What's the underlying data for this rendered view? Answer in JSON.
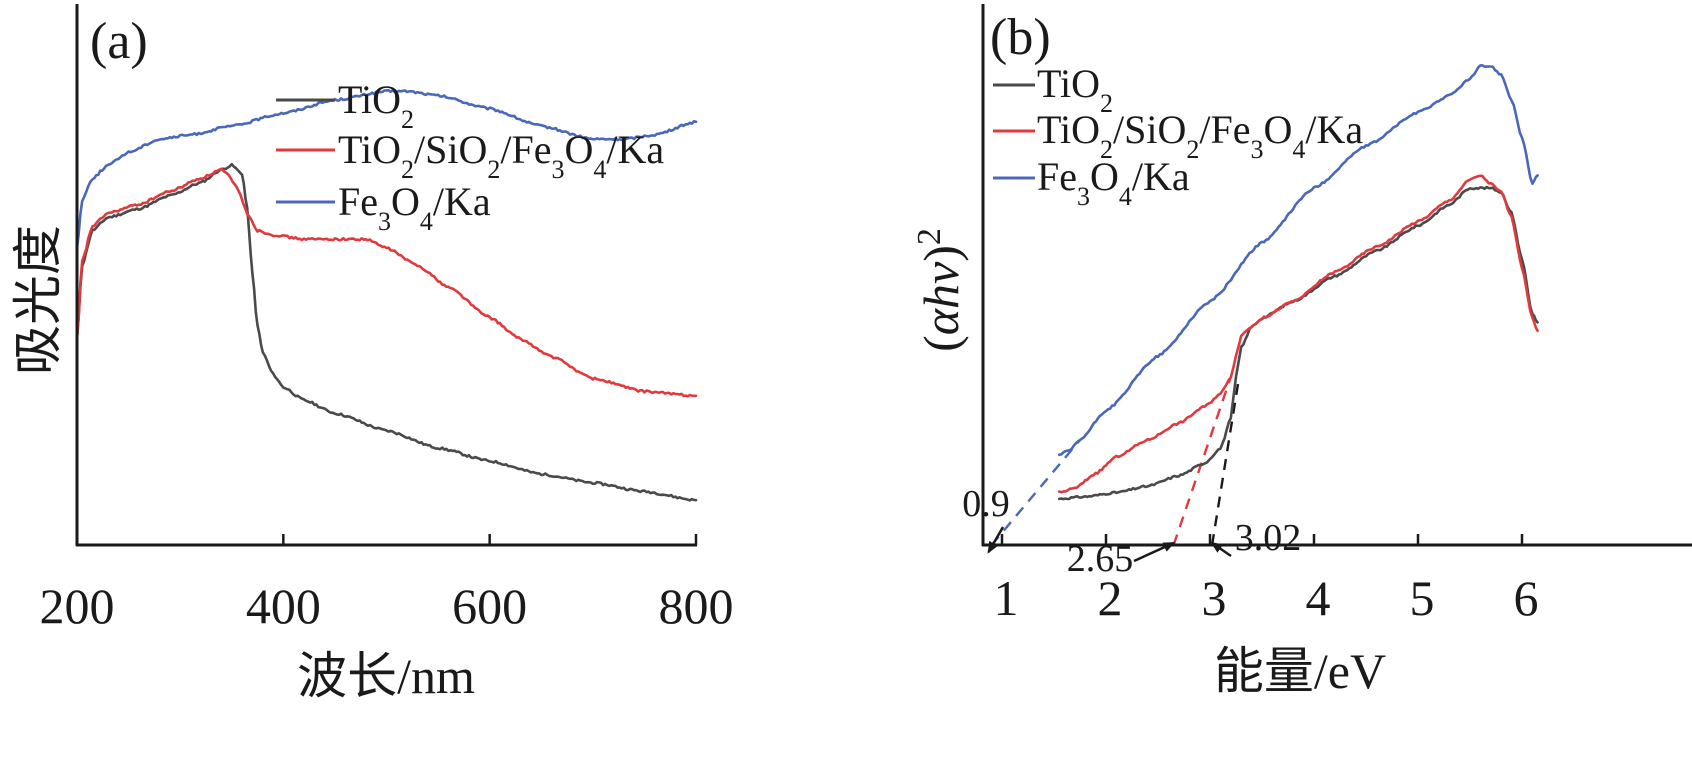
{
  "chart_data": [
    {
      "type": "line",
      "panel_label": "(a)",
      "title": "",
      "xlabel": "波长/nm",
      "ylabel": "吸光度",
      "xlim": [
        200,
        800
      ],
      "ylim": [
        0,
        100
      ],
      "x_ticks": [
        200,
        400,
        600,
        800
      ],
      "x_tick_labels": [
        "200",
        "400",
        "600",
        "800"
      ],
      "y_ticks": [],
      "grid": false,
      "legend": {
        "position": "top-right",
        "entries": [
          "TiO2",
          "TiO2/SiO2/Fe3O4/Ka",
          "Fe3O4/Ka"
        ]
      },
      "series": [
        {
          "name": "TiO2",
          "legend_label": {
            "parts": [
              [
                "Ti",
                ""
              ],
              [
                "O",
                ""
              ],
              [
                "2",
                "sub"
              ]
            ]
          },
          "color": "#4a4a4a",
          "x": [
            200,
            205,
            215,
            230,
            260,
            290,
            320,
            340,
            350,
            360,
            365,
            370,
            375,
            380,
            390,
            400,
            420,
            450,
            500,
            550,
            600,
            650,
            700,
            750,
            800
          ],
          "y": [
            45,
            62,
            70,
            73,
            75,
            78,
            81,
            84,
            85,
            83,
            75,
            60,
            48,
            42,
            37,
            34,
            31,
            28,
            24,
            20,
            17,
            14,
            12,
            10,
            8
          ]
        },
        {
          "name": "TiO2/SiO2/Fe3O4/Ka",
          "legend_label": {
            "parts": [
              [
                "Ti",
                ""
              ],
              [
                "O",
                ""
              ],
              [
                "2",
                "sub"
              ],
              [
                "/Si",
                ""
              ],
              [
                "O",
                ""
              ],
              [
                "2",
                "sub"
              ],
              [
                "/Fe",
                ""
              ],
              [
                "3",
                "sub"
              ],
              [
                "O",
                ""
              ],
              [
                "4",
                "sub"
              ],
              [
                "/Ka",
                ""
              ]
            ]
          },
          "color": "#e03a3e",
          "x": [
            200,
            205,
            215,
            230,
            260,
            290,
            320,
            340,
            345,
            355,
            365,
            375,
            390,
            420,
            450,
            480,
            500,
            530,
            560,
            600,
            630,
            660,
            700,
            750,
            800
          ],
          "y": [
            45,
            63,
            71,
            74,
            76,
            79,
            82,
            84,
            83,
            80,
            74,
            70,
            69,
            68,
            68,
            68,
            66,
            62,
            57,
            50,
            45,
            41,
            36,
            33,
            32
          ]
        },
        {
          "name": "Fe3O4/Ka",
          "legend_label": {
            "parts": [
              [
                "Fe",
                ""
              ],
              [
                "3",
                "sub"
              ],
              [
                "O",
                ""
              ],
              [
                "4",
                "sub"
              ],
              [
                "/Ka",
                ""
              ]
            ]
          },
          "color": "#4a68b8",
          "x": [
            200,
            205,
            215,
            230,
            250,
            280,
            310,
            350,
            400,
            450,
            500,
            520,
            550,
            600,
            650,
            700,
            730,
            760,
            800
          ],
          "y": [
            66,
            77,
            82,
            85,
            88,
            91,
            92,
            94,
            97,
            100,
            102,
            102,
            101,
            98,
            94,
            91,
            91,
            92,
            95
          ]
        }
      ]
    },
    {
      "type": "line",
      "panel_label": "(b)",
      "title": "",
      "xlabel": "能量/eV",
      "ylabel": "(αhν)²",
      "ylabel_parts": {
        "open": "(",
        "greek": "αhν",
        "close": ")",
        "sup": "2"
      },
      "xlim": [
        0.8,
        6.2
      ],
      "ylim": [
        0,
        100
      ],
      "x_ticks": [
        1,
        2,
        3,
        4,
        5,
        6
      ],
      "x_tick_labels": [
        "1",
        "2",
        "3",
        "4",
        "5",
        "6"
      ],
      "y_ticks": [],
      "grid": false,
      "legend": {
        "position": "top-left",
        "entries": [
          "TiO2",
          "TiO2/SiO2/Fe3O4/Ka",
          "Fe3O4/Ka"
        ]
      },
      "series": [
        {
          "name": "TiO2",
          "color": "#4a4a4a",
          "x": [
            1.55,
            1.8,
            2.1,
            2.4,
            2.7,
            2.95,
            3.1,
            3.2,
            3.25,
            3.3,
            3.4,
            3.5,
            3.8,
            4.2,
            4.6,
            5.0,
            5.3,
            5.5,
            5.6,
            5.7,
            5.8,
            5.9,
            6.0,
            6.1,
            6.15
          ],
          "y": [
            11,
            11.5,
            12.5,
            14,
            16.5,
            19.5,
            23,
            30,
            40,
            47,
            52,
            54,
            58,
            64,
            70,
            76,
            81,
            85,
            85,
            85,
            84,
            79,
            68,
            55,
            53
          ]
        },
        {
          "name": "TiO2/SiO2/Fe3O4/Ka",
          "color": "#e03a3e",
          "x": [
            1.55,
            1.7,
            1.9,
            2.1,
            2.4,
            2.7,
            2.95,
            3.1,
            3.2,
            3.25,
            3.3,
            3.4,
            3.5,
            3.8,
            4.2,
            4.6,
            5.0,
            5.3,
            5.5,
            5.6,
            5.7,
            5.8,
            5.9,
            6.0,
            6.1,
            6.15
          ],
          "y": [
            12.5,
            13.5,
            17,
            21,
            25,
            29,
            33,
            36,
            40,
            45,
            50,
            52,
            54,
            58,
            65,
            71,
            77,
            82,
            87,
            88,
            86,
            84,
            78,
            66,
            54,
            51
          ]
        },
        {
          "name": "Fe3O4/Ka",
          "color": "#4a68b8",
          "x": [
            1.55,
            1.65,
            1.75,
            2.0,
            2.5,
            3.0,
            3.5,
            4.0,
            4.5,
            5.0,
            5.3,
            5.5,
            5.6,
            5.7,
            5.8,
            5.9,
            6.0,
            6.1,
            6.15
          ],
          "y": [
            21.5,
            22.5,
            25,
            32,
            45,
            58,
            72,
            85,
            95,
            103,
            107,
            111,
            114,
            114,
            112,
            106,
            97,
            86,
            88
          ]
        }
      ],
      "tangent_extrapolations": [
        {
          "series": "Fe3O4/Ka",
          "color": "#4a68b8",
          "from": [
            0.9,
            0
          ],
          "to": [
            1.75,
            25
          ]
        },
        {
          "series": "TiO2/SiO2/Fe3O4/Ka",
          "color": "#e03a3e",
          "from": [
            2.65,
            0
          ],
          "to": [
            3.2,
            40
          ]
        },
        {
          "series": "TiO2",
          "color": "#1a1a1a",
          "from": [
            3.02,
            0
          ],
          "to": [
            3.28,
            40
          ]
        }
      ],
      "annotations": [
        {
          "text": "0.9",
          "points_to_x": 0.9
        },
        {
          "text": "2.65",
          "points_to_x": 2.65
        },
        {
          "text": "3.02",
          "points_to_x": 3.02
        }
      ]
    }
  ]
}
